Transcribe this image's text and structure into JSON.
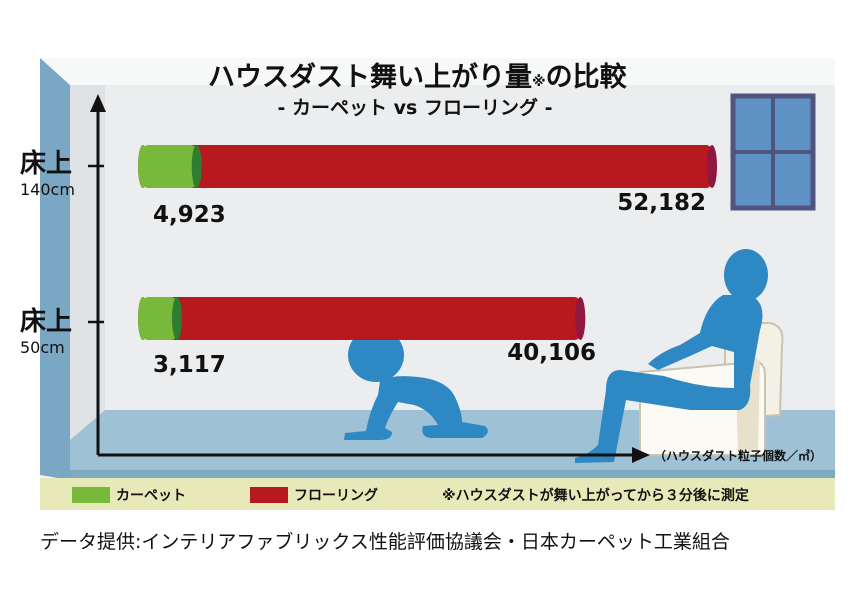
{
  "chart_data": {
    "type": "bar",
    "title": "ハウスダスト舞い上がり量",
    "title_mark": "※",
    "title_suffix": "の比較",
    "subtitle": "- カーペット vs フローリング -",
    "orientation": "horizontal",
    "categories": [
      {
        "label": "床上",
        "sublabel": "140cm"
      },
      {
        "label": "床上",
        "sublabel": "50cm"
      }
    ],
    "series": [
      {
        "name": "カーペット",
        "color": "#78b83a",
        "values": [
          4923,
          3117
        ],
        "labels": [
          "4,923",
          "3,117"
        ]
      },
      {
        "name": "フローリング",
        "color": "#b8191e",
        "values": [
          52182,
          40106
        ],
        "labels": [
          "52,182",
          "40,106"
        ]
      }
    ],
    "xlabel": "（ハウスダスト粒子個数／㎥）",
    "footnote": "※ハウスダストが舞い上がってから３分後に測定",
    "xlim": [
      0,
      52182
    ]
  },
  "source": "データ提供:インテリアファブリックス性能評価協議会・日本カーペット工業組合",
  "colors": {
    "wall": "#eaeced",
    "side_wall": "#d9dddf",
    "floor": "#9fc1d5",
    "band": "#e7eab8",
    "person": "#2e88c4"
  },
  "icons": [
    "crawling-baby-icon",
    "seated-adult-icon",
    "window-icon"
  ]
}
